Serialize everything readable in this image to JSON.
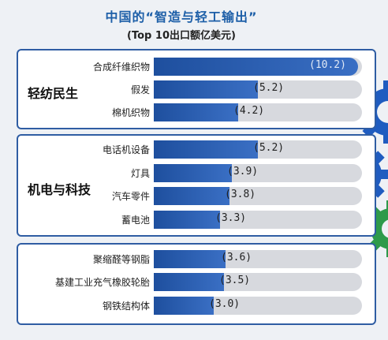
{
  "title": "中国的“智造与轻工输出”",
  "subtitle": "(Top 10出口额亿美元)",
  "colors": {
    "bar": "#2a5cb0",
    "track": "#d7d9de",
    "border": "#2f5da3",
    "title": "#1d5fa8"
  },
  "chart_data": {
    "type": "bar",
    "orientation": "horizontal",
    "title": "中国的“智造与轻工输出”",
    "subtitle": "(Top 10出口额亿美元)",
    "xlim": [
      0,
      10.4
    ],
    "groups": [
      {
        "name": "轻纺民生",
        "categories": [
          "合成纤维织物",
          "假发",
          "棉机织物"
        ],
        "values": [
          10.2,
          5.2,
          4.2
        ],
        "labels": [
          "(10.2)",
          "(5.2)",
          "(4.2)"
        ]
      },
      {
        "name": "机电与科技",
        "categories": [
          "电话机设备",
          "灯具",
          "汽车零件",
          "蓄电池"
        ],
        "values": [
          5.2,
          3.9,
          3.8,
          3.3
        ],
        "labels": [
          "(5.2)",
          "(3.9)",
          "(3.8)",
          "(3.3)"
        ]
      },
      {
        "name": "",
        "categories": [
          "聚缩醛等钢脂",
          "基建工业充气橡胶轮胎",
          "钢铁结构体"
        ],
        "values": [
          3.6,
          3.5,
          3.0
        ],
        "labels": [
          "(3.6)",
          "(3.5)",
          "(3.0)"
        ]
      }
    ]
  }
}
